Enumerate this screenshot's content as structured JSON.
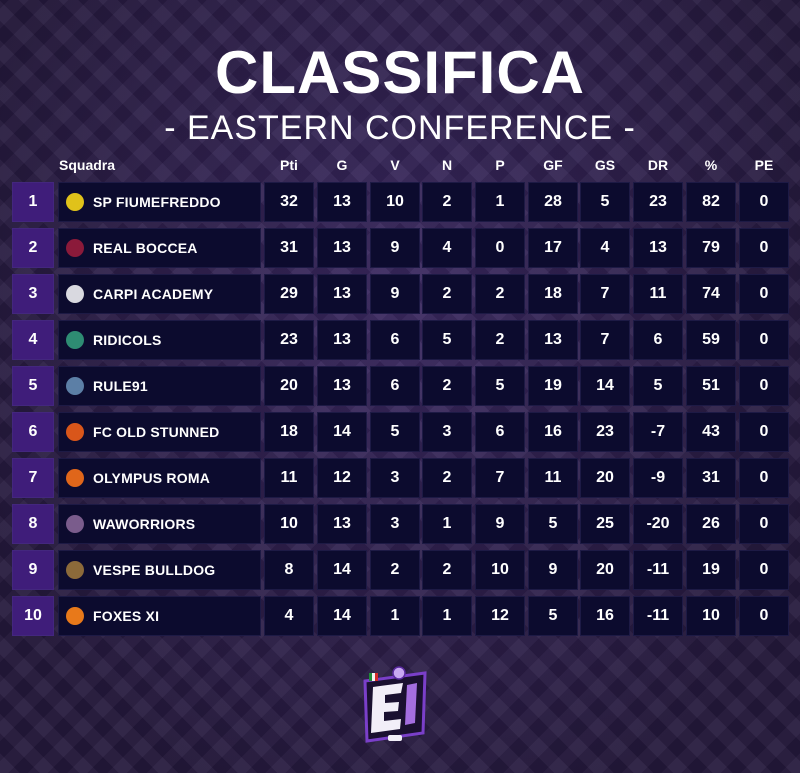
{
  "title": "CLASSIFICA",
  "subtitle": "- EASTERN CONFERENCE -",
  "columns": {
    "team": "Squadra",
    "pts": "Pti",
    "g": "G",
    "v": "V",
    "n": "N",
    "p": "P",
    "gf": "GF",
    "gs": "GS",
    "dr": "DR",
    "pct": "%",
    "pe": "PE"
  },
  "rows": [
    {
      "pos": "1",
      "team": "SP FIUMEFREDDO",
      "pts": "32",
      "g": "13",
      "v": "10",
      "n": "2",
      "p": "1",
      "gf": "28",
      "gs": "5",
      "dr": "23",
      "pct": "82",
      "pe": "0",
      "logo_color": "#e0c21a"
    },
    {
      "pos": "2",
      "team": "REAL BOCCEA",
      "pts": "31",
      "g": "13",
      "v": "9",
      "n": "4",
      "p": "0",
      "gf": "17",
      "gs": "4",
      "dr": "13",
      "pct": "79",
      "pe": "0",
      "logo_color": "#8b1a3a"
    },
    {
      "pos": "3",
      "team": "CARPI ACADEMY",
      "pts": "29",
      "g": "13",
      "v": "9",
      "n": "2",
      "p": "2",
      "gf": "18",
      "gs": "7",
      "dr": "11",
      "pct": "74",
      "pe": "0",
      "logo_color": "#d9d9e0"
    },
    {
      "pos": "4",
      "team": "RIDICOLS",
      "pts": "23",
      "g": "13",
      "v": "6",
      "n": "5",
      "p": "2",
      "gf": "13",
      "gs": "7",
      "dr": "6",
      "pct": "59",
      "pe": "0",
      "logo_color": "#2e8c73"
    },
    {
      "pos": "5",
      "team": "RULE91",
      "pts": "20",
      "g": "13",
      "v": "6",
      "n": "2",
      "p": "5",
      "gf": "19",
      "gs": "14",
      "dr": "5",
      "pct": "51",
      "pe": "0",
      "logo_color": "#5c7fa6"
    },
    {
      "pos": "6",
      "team": "FC OLD STUNNED",
      "pts": "18",
      "g": "14",
      "v": "5",
      "n": "3",
      "p": "6",
      "gf": "16",
      "gs": "23",
      "dr": "-7",
      "pct": "43",
      "pe": "0",
      "logo_color": "#d9561a"
    },
    {
      "pos": "7",
      "team": "OLYMPUS ROMA",
      "pts": "11",
      "g": "12",
      "v": "3",
      "n": "2",
      "p": "7",
      "gf": "11",
      "gs": "20",
      "dr": "-9",
      "pct": "31",
      "pe": "0",
      "logo_color": "#e0661a"
    },
    {
      "pos": "8",
      "team": "WAWORRIORS",
      "pts": "10",
      "g": "13",
      "v": "3",
      "n": "1",
      "p": "9",
      "gf": "5",
      "gs": "25",
      "dr": "-20",
      "pct": "26",
      "pe": "0",
      "logo_color": "#7a5c8c"
    },
    {
      "pos": "9",
      "team": "VESPE BULLDOG",
      "pts": "8",
      "g": "14",
      "v": "2",
      "n": "2",
      "p": "10",
      "gf": "9",
      "gs": "20",
      "dr": "-11",
      "pct": "19",
      "pe": "0",
      "logo_color": "#8c6a3a"
    },
    {
      "pos": "10",
      "team": "FOXES XI",
      "pts": "4",
      "g": "14",
      "v": "1",
      "n": "1",
      "p": "12",
      "gf": "5",
      "gs": "16",
      "dr": "-11",
      "pct": "10",
      "pe": "0",
      "logo_color": "#e8791a"
    }
  ],
  "colors": {
    "background": "#2b1d45",
    "cell": "#0c0b2e",
    "position_cell": "#3f1d7a",
    "brand_accent": "#7a3fc9"
  },
  "brand_icon": "league-e-logo-icon"
}
